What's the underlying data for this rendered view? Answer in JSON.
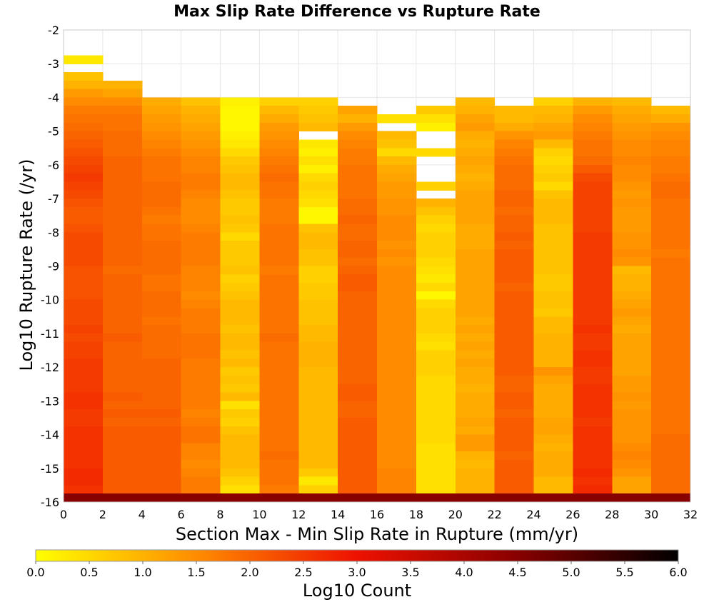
{
  "chart_data": {
    "type": "heatmap",
    "title": "Max Slip Rate Difference vs Rupture Rate",
    "xlabel": "Section Max - Min Slip Rate in Rupture (mm/yr)",
    "ylabel": "Log10 Rupture Rate (/yr)",
    "xlim": [
      0,
      32
    ],
    "ylim": [
      -16,
      -2
    ],
    "x_ticks": [
      "0",
      "2",
      "4",
      "6",
      "8",
      "10",
      "12",
      "14",
      "16",
      "18",
      "20",
      "22",
      "24",
      "26",
      "28",
      "30",
      "32"
    ],
    "y_ticks": [
      "-2",
      "-3",
      "-4",
      "-5",
      "-6",
      "-7",
      "-8",
      "-9",
      "-10",
      "-11",
      "-12",
      "-13",
      "-14",
      "-15",
      "-16"
    ],
    "x_bin_width": 2,
    "y_bin_height": 0.25,
    "y_bin_top": -2,
    "grid": true,
    "colorbar": {
      "label": "Log10 Count",
      "min": 0.0,
      "max": 6.0,
      "ticks": [
        "0.0",
        "0.5",
        "1.0",
        "1.5",
        "2.0",
        "2.5",
        "3.0",
        "3.5",
        "4.0",
        "4.5",
        "5.0",
        "5.5",
        "6.0"
      ],
      "stops": [
        {
          "value": 0.0,
          "color": "#ffff00"
        },
        {
          "value": 1.5,
          "color": "#ff8c00"
        },
        {
          "value": 3.0,
          "color": "#ee1100"
        },
        {
          "value": 4.5,
          "color": "#880000"
        },
        {
          "value": 6.0,
          "color": "#000000"
        }
      ]
    },
    "columns": [
      {
        "x": 1,
        "values": [
          null,
          null,
          null,
          0.3,
          null,
          0.8,
          1.0,
          1.3,
          1.5,
          1.7,
          1.8,
          1.9,
          2.0,
          2.1,
          2.2,
          2.3,
          2.4,
          2.5,
          2.4,
          2.3,
          2.2,
          2.1,
          2.1,
          2.2,
          2.3,
          2.3,
          2.3,
          2.3,
          2.2,
          2.2,
          2.2,
          2.2,
          2.3,
          2.3,
          2.3,
          2.4,
          2.3,
          2.4,
          2.4,
          2.5,
          2.5,
          2.5,
          2.5,
          2.6,
          2.6,
          2.5,
          2.5,
          2.6,
          2.6,
          2.6,
          2.6,
          2.6,
          2.7,
          2.7,
          2.6,
          4.5
        ]
      },
      {
        "x": 3,
        "values": [
          null,
          null,
          null,
          null,
          null,
          null,
          1.0,
          1.2,
          1.5,
          1.7,
          1.8,
          1.8,
          1.9,
          1.9,
          1.9,
          2.0,
          2.0,
          2.0,
          2.0,
          2.0,
          2.0,
          2.0,
          2.0,
          2.0,
          2.0,
          2.0,
          2.0,
          2.0,
          1.9,
          2.0,
          2.0,
          2.0,
          2.0,
          2.0,
          2.0,
          2.0,
          2.1,
          2.0,
          2.0,
          2.0,
          2.0,
          2.0,
          2.0,
          2.1,
          2.0,
          2.1,
          2.0,
          2.1,
          2.1,
          2.1,
          2.1,
          2.1,
          2.1,
          2.1,
          2.1,
          4.5
        ]
      },
      {
        "x": 5,
        "values": [
          null,
          null,
          null,
          null,
          null,
          null,
          null,
          null,
          1.1,
          1.2,
          1.3,
          1.4,
          1.5,
          1.6,
          1.7,
          1.8,
          1.8,
          1.8,
          1.9,
          1.9,
          1.9,
          1.8,
          1.7,
          1.8,
          1.8,
          1.9,
          1.9,
          1.9,
          1.9,
          1.8,
          1.8,
          1.9,
          1.9,
          1.9,
          1.8,
          1.9,
          1.9,
          1.9,
          1.9,
          2.0,
          2.0,
          2.0,
          2.0,
          2.0,
          2.0,
          2.1,
          2.0,
          2.1,
          2.1,
          2.1,
          2.1,
          2.1,
          2.1,
          2.1,
          2.1,
          4.5
        ]
      },
      {
        "x": 7,
        "values": [
          null,
          null,
          null,
          null,
          null,
          null,
          null,
          null,
          0.8,
          1.0,
          1.1,
          1.2,
          1.3,
          1.4,
          1.5,
          1.6,
          1.6,
          1.7,
          1.7,
          1.6,
          1.5,
          1.5,
          1.5,
          1.6,
          1.7,
          1.7,
          1.7,
          1.7,
          1.6,
          1.6,
          1.6,
          1.5,
          1.6,
          1.7,
          1.7,
          1.7,
          1.8,
          1.8,
          1.8,
          1.7,
          1.7,
          1.7,
          1.7,
          1.7,
          1.7,
          1.6,
          1.7,
          1.8,
          1.8,
          1.6,
          1.6,
          1.5,
          1.6,
          1.7,
          1.7,
          4.5
        ]
      },
      {
        "x": 9,
        "values": [
          null,
          null,
          null,
          null,
          null,
          null,
          null,
          null,
          0.2,
          0.1,
          0.1,
          0.1,
          0.2,
          0.3,
          0.5,
          0.7,
          0.8,
          0.9,
          0.9,
          0.8,
          0.7,
          0.7,
          0.8,
          0.7,
          0.5,
          0.7,
          0.7,
          0.7,
          0.8,
          0.6,
          0.7,
          0.8,
          0.9,
          0.9,
          0.9,
          0.8,
          0.9,
          0.9,
          0.8,
          0.9,
          0.7,
          0.8,
          0.7,
          0.9,
          0.4,
          0.7,
          0.6,
          0.8,
          0.9,
          0.9,
          0.9,
          0.9,
          0.8,
          0.6,
          0.4,
          4.5
        ]
      },
      {
        "x": 11,
        "values": [
          null,
          null,
          null,
          null,
          null,
          null,
          null,
          null,
          0.6,
          0.9,
          1.1,
          1.3,
          1.4,
          1.5,
          1.6,
          1.7,
          1.8,
          1.9,
          1.8,
          1.8,
          1.7,
          1.7,
          1.7,
          1.8,
          1.8,
          1.8,
          1.8,
          1.8,
          1.7,
          1.8,
          1.8,
          1.8,
          1.8,
          1.8,
          1.8,
          1.8,
          1.9,
          1.8,
          1.8,
          1.8,
          1.8,
          1.8,
          1.8,
          1.8,
          1.8,
          1.8,
          1.8,
          1.8,
          1.8,
          1.8,
          1.9,
          1.8,
          1.8,
          1.8,
          1.7,
          4.5
        ]
      },
      {
        "x": 13,
        "values": [
          null,
          null,
          null,
          null,
          null,
          null,
          null,
          null,
          0.6,
          0.7,
          0.8,
          0.9,
          null,
          0.3,
          0.2,
          0.4,
          0.2,
          0.5,
          0.6,
          0.5,
          0.4,
          0.1,
          0.1,
          0.8,
          0.9,
          0.9,
          0.8,
          0.8,
          0.6,
          0.6,
          0.7,
          0.7,
          0.8,
          0.8,
          0.8,
          0.9,
          0.9,
          1.0,
          1.0,
          1.0,
          0.9,
          0.9,
          0.9,
          0.9,
          0.9,
          0.9,
          0.9,
          0.9,
          0.9,
          0.9,
          0.9,
          0.9,
          0.7,
          0.3,
          0.6,
          4.5
        ]
      },
      {
        "x": 15,
        "values": [
          null,
          null,
          null,
          null,
          null,
          null,
          null,
          null,
          null,
          1.2,
          1.0,
          1.3,
          1.5,
          1.6,
          1.7,
          1.7,
          1.8,
          1.8,
          1.8,
          1.8,
          1.9,
          1.9,
          2.0,
          1.9,
          1.9,
          2.0,
          2.0,
          1.9,
          2.0,
          2.1,
          2.1,
          2.0,
          2.0,
          2.0,
          2.0,
          2.0,
          2.0,
          2.0,
          2.0,
          2.0,
          2.0,
          2.0,
          2.1,
          2.1,
          2.0,
          2.0,
          2.1,
          2.1,
          2.1,
          2.1,
          2.1,
          2.1,
          2.1,
          2.1,
          2.1,
          4.5
        ]
      },
      {
        "x": 17,
        "values": [
          null,
          null,
          null,
          null,
          null,
          null,
          null,
          null,
          null,
          null,
          0.4,
          null,
          0.9,
          0.8,
          0.5,
          0.9,
          1.1,
          1.2,
          1.3,
          1.3,
          1.4,
          1.4,
          1.5,
          1.5,
          1.5,
          1.4,
          1.5,
          1.4,
          1.5,
          1.5,
          1.5,
          1.5,
          1.5,
          1.5,
          1.5,
          1.5,
          1.5,
          1.5,
          1.5,
          1.5,
          1.5,
          1.5,
          1.5,
          1.5,
          1.5,
          1.5,
          1.5,
          1.5,
          1.5,
          1.5,
          1.5,
          1.5,
          1.6,
          1.6,
          1.6,
          4.5
        ]
      },
      {
        "x": 19,
        "values": [
          null,
          null,
          null,
          null,
          null,
          null,
          null,
          null,
          null,
          0.7,
          0.4,
          0.2,
          null,
          null,
          0.5,
          null,
          null,
          null,
          0.6,
          null,
          1.0,
          0.8,
          0.6,
          0.5,
          0.6,
          0.6,
          0.6,
          0.5,
          0.4,
          0.3,
          0.5,
          0.1,
          0.5,
          0.6,
          0.6,
          0.6,
          0.5,
          0.4,
          0.6,
          0.6,
          0.6,
          0.5,
          0.5,
          0.5,
          0.5,
          0.5,
          0.5,
          0.5,
          0.5,
          0.4,
          0.4,
          0.4,
          0.4,
          0.4,
          0.4,
          4.5
        ]
      },
      {
        "x": 21,
        "values": [
          null,
          null,
          null,
          null,
          null,
          null,
          null,
          null,
          0.9,
          1.0,
          1.2,
          1.3,
          1.1,
          1.0,
          1.1,
          1.2,
          1.1,
          1.0,
          1.1,
          1.2,
          1.2,
          1.2,
          1.2,
          1.1,
          1.1,
          1.1,
          1.2,
          1.2,
          1.2,
          1.2,
          1.2,
          1.2,
          1.2,
          1.2,
          1.1,
          1.2,
          1.1,
          1.2,
          1.1,
          1.2,
          1.1,
          1.1,
          1.0,
          1.1,
          1.1,
          1.1,
          1.2,
          1.1,
          1.3,
          1.3,
          1.0,
          0.9,
          1.0,
          1.0,
          1.0,
          4.5
        ]
      },
      {
        "x": 23,
        "values": [
          null,
          null,
          null,
          null,
          null,
          null,
          null,
          null,
          null,
          0.9,
          0.9,
          1.1,
          1.4,
          1.6,
          1.7,
          1.8,
          1.9,
          1.9,
          1.9,
          2.0,
          2.0,
          1.9,
          2.0,
          2.0,
          2.1,
          2.0,
          2.1,
          2.1,
          2.1,
          2.1,
          2.0,
          2.1,
          2.1,
          2.1,
          2.1,
          2.1,
          2.1,
          2.1,
          2.1,
          2.1,
          2.1,
          2.0,
          2.0,
          2.1,
          2.1,
          2.0,
          2.1,
          2.1,
          2.1,
          2.1,
          2.0,
          2.1,
          2.1,
          2.1,
          2.1,
          4.5
        ]
      },
      {
        "x": 25,
        "values": [
          null,
          null,
          null,
          null,
          null,
          null,
          null,
          null,
          0.6,
          0.9,
          1.0,
          1.2,
          1.3,
          0.9,
          0.6,
          0.5,
          0.6,
          0.7,
          0.5,
          0.8,
          0.9,
          0.9,
          0.9,
          0.8,
          0.8,
          0.8,
          0.8,
          0.8,
          0.8,
          0.7,
          0.7,
          0.8,
          0.8,
          0.7,
          0.9,
          0.9,
          1.0,
          1.0,
          1.0,
          1.0,
          1.4,
          1.2,
          1.1,
          1.1,
          1.1,
          1.1,
          1.2,
          1.2,
          1.1,
          1.0,
          1.1,
          1.1,
          1.1,
          0.9,
          0.9,
          4.5
        ]
      },
      {
        "x": 27,
        "values": [
          null,
          null,
          null,
          null,
          null,
          null,
          null,
          null,
          1.0,
          1.3,
          1.5,
          1.6,
          1.7,
          1.8,
          1.8,
          1.9,
          2.1,
          2.3,
          2.4,
          2.4,
          2.4,
          2.4,
          2.4,
          2.4,
          2.5,
          2.5,
          2.5,
          2.5,
          2.5,
          2.5,
          2.5,
          2.5,
          2.5,
          2.5,
          2.5,
          2.6,
          2.5,
          2.5,
          2.6,
          2.6,
          2.5,
          2.5,
          2.6,
          2.6,
          2.6,
          2.6,
          2.5,
          2.6,
          2.6,
          2.6,
          2.6,
          2.6,
          2.7,
          2.6,
          2.7,
          4.5
        ]
      },
      {
        "x": 29,
        "values": [
          null,
          null,
          null,
          null,
          null,
          null,
          null,
          null,
          0.9,
          1.1,
          1.2,
          1.3,
          1.4,
          1.5,
          1.5,
          1.6,
          1.5,
          1.5,
          1.4,
          1.3,
          1.4,
          1.3,
          1.3,
          1.3,
          1.4,
          1.4,
          1.5,
          1.4,
          0.9,
          1.0,
          1.0,
          1.1,
          1.2,
          1.3,
          1.2,
          1.1,
          1.2,
          1.2,
          1.2,
          1.2,
          1.2,
          1.3,
          1.3,
          1.4,
          1.3,
          1.4,
          1.4,
          1.4,
          1.4,
          1.5,
          1.6,
          1.5,
          1.4,
          1.2,
          1.2,
          4.5
        ]
      },
      {
        "x": 31,
        "values": [
          null,
          null,
          null,
          null,
          null,
          null,
          null,
          null,
          null,
          0.9,
          1.1,
          1.4,
          1.5,
          1.6,
          1.6,
          1.7,
          1.7,
          1.8,
          1.9,
          1.9,
          1.8,
          1.8,
          1.8,
          1.8,
          1.8,
          1.8,
          1.7,
          1.8,
          1.8,
          1.8,
          1.8,
          1.8,
          1.8,
          1.8,
          1.8,
          1.8,
          1.8,
          1.8,
          1.8,
          1.8,
          1.8,
          1.8,
          1.8,
          1.8,
          1.8,
          1.8,
          1.8,
          1.8,
          1.9,
          1.9,
          1.9,
          1.9,
          1.9,
          1.9,
          1.9,
          4.5
        ]
      }
    ]
  }
}
